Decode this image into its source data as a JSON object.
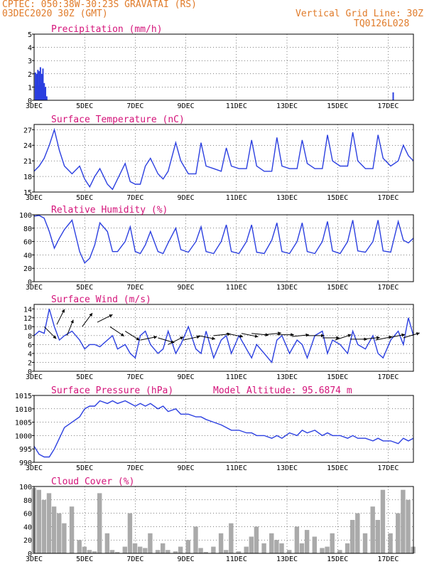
{
  "header": {
    "line1_left": "CPTEC:   050:38W-30:23S  GRAVATAI (RS)",
    "line2_left": "03DEC2020 30Z (GMT)",
    "right_top": "Vertical Grid Line: 30Z",
    "right_bottom": "TQ0126L028"
  },
  "colors": {
    "header": "#e07b2a",
    "title": "#d4147a",
    "series": "#2b3fe0",
    "cloud": "#aaaaaa"
  },
  "chart_data": [
    {
      "id": "precip",
      "type": "bar",
      "title": "Precipitation (mm/h)",
      "ylim": [
        0,
        5
      ],
      "yticks": [
        0,
        1,
        2,
        3,
        4,
        5
      ],
      "xticks": [
        "3DEC",
        "5DEC",
        "7DEC",
        "9DEC",
        "11DEC",
        "13DEC",
        "15DEC",
        "17DEC"
      ],
      "x_day_range": [
        3,
        18
      ],
      "values": [
        [
          3.05,
          2.1
        ],
        [
          3.08,
          1.2
        ],
        [
          3.1,
          2.0
        ],
        [
          3.12,
          1.4
        ],
        [
          3.15,
          2.3
        ],
        [
          3.18,
          1.1
        ],
        [
          3.2,
          2.2
        ],
        [
          3.22,
          1.6
        ],
        [
          3.25,
          2.5
        ],
        [
          3.28,
          1.3
        ],
        [
          3.3,
          2.0
        ],
        [
          3.32,
          1.1
        ],
        [
          3.35,
          2.4
        ],
        [
          3.38,
          0.9
        ],
        [
          3.4,
          1.3
        ],
        [
          3.42,
          0.8
        ],
        [
          3.45,
          1.0
        ],
        [
          3.5,
          0.3
        ],
        [
          17.2,
          0.6
        ]
      ]
    },
    {
      "id": "temp",
      "type": "line",
      "title": "Surface Temperature (nC)",
      "ylim": [
        15,
        28
      ],
      "yticks": [
        15,
        18,
        21,
        24,
        27
      ],
      "xticks": [
        "3DEC",
        "5DEC",
        "7DEC",
        "9DEC",
        "11DEC",
        "13DEC",
        "15DEC",
        "17DEC"
      ],
      "x_day_range": [
        3,
        18
      ],
      "x": [
        3,
        3.2,
        3.4,
        3.6,
        3.8,
        4,
        4.2,
        4.5,
        4.8,
        5,
        5.2,
        5.4,
        5.6,
        5.9,
        6.1,
        6.3,
        6.6,
        6.8,
        7,
        7.2,
        7.4,
        7.6,
        7.9,
        8.1,
        8.3,
        8.6,
        8.8,
        9.1,
        9.4,
        9.6,
        9.8,
        10.1,
        10.4,
        10.6,
        10.8,
        11.1,
        11.4,
        11.6,
        11.8,
        12.1,
        12.4,
        12.6,
        12.8,
        13.1,
        13.4,
        13.6,
        13.8,
        14.1,
        14.4,
        14.6,
        14.8,
        15.1,
        15.4,
        15.6,
        15.8,
        16.1,
        16.4,
        16.6,
        16.8,
        17.1,
        17.4,
        17.6,
        17.8,
        18
      ],
      "y": [
        19,
        20,
        21.5,
        24,
        27,
        23,
        20,
        18.5,
        20,
        17.5,
        16,
        18,
        19.5,
        16.5,
        15.5,
        17.5,
        20.5,
        17,
        16.5,
        16.5,
        20,
        21.5,
        18.5,
        17.5,
        19,
        24.5,
        21,
        18.5,
        18.5,
        24.5,
        20,
        19.5,
        19,
        23.5,
        20,
        19.5,
        19.5,
        25,
        20,
        19,
        19,
        25.5,
        20,
        19.5,
        19.5,
        25,
        20.5,
        19.5,
        19.5,
        26,
        21,
        20,
        20,
        26.5,
        21,
        19.5,
        19.5,
        26,
        21.5,
        20,
        21,
        24,
        22,
        21
      ]
    },
    {
      "id": "rh",
      "type": "line",
      "title": "Relative Humidity (%)",
      "ylim": [
        0,
        100
      ],
      "yticks": [
        0,
        20,
        40,
        60,
        80,
        100
      ],
      "xticks": [
        "3DEC",
        "5DEC",
        "7DEC",
        "9DEC",
        "11DEC",
        "13DEC",
        "15DEC",
        "17DEC"
      ],
      "x_day_range": [
        3,
        18
      ],
      "x": [
        3,
        3.2,
        3.4,
        3.6,
        3.8,
        4,
        4.2,
        4.5,
        4.8,
        5,
        5.2,
        5.4,
        5.6,
        5.9,
        6.1,
        6.3,
        6.6,
        6.8,
        7,
        7.2,
        7.4,
        7.6,
        7.9,
        8.1,
        8.3,
        8.6,
        8.8,
        9.1,
        9.4,
        9.6,
        9.8,
        10.1,
        10.4,
        10.6,
        10.8,
        11.1,
        11.4,
        11.6,
        11.8,
        12.1,
        12.4,
        12.6,
        12.8,
        13.1,
        13.4,
        13.6,
        13.8,
        14.1,
        14.4,
        14.6,
        14.8,
        15.1,
        15.4,
        15.6,
        15.8,
        16.1,
        16.4,
        16.6,
        16.8,
        17.1,
        17.4,
        17.6,
        17.8,
        18
      ],
      "y": [
        98,
        99,
        95,
        75,
        50,
        65,
        78,
        92,
        45,
        28,
        35,
        55,
        88,
        75,
        45,
        45,
        60,
        82,
        45,
        42,
        55,
        75,
        45,
        42,
        58,
        80,
        48,
        44,
        60,
        82,
        45,
        42,
        60,
        85,
        45,
        42,
        60,
        85,
        44,
        42,
        62,
        88,
        45,
        42,
        60,
        88,
        45,
        42,
        60,
        90,
        46,
        42,
        60,
        92,
        46,
        44,
        60,
        92,
        46,
        44,
        90,
        62,
        58,
        65
      ]
    },
    {
      "id": "wind",
      "type": "line",
      "title": "Surface Wind (m/s)",
      "ylim": [
        0,
        15
      ],
      "yticks": [
        0,
        2,
        4,
        6,
        8,
        10,
        12,
        14
      ],
      "xticks": [
        "3DEC",
        "5DEC",
        "7DEC",
        "9DEC",
        "11DEC",
        "13DEC",
        "15DEC",
        "17DEC"
      ],
      "x_day_range": [
        3,
        18
      ],
      "x": [
        3,
        3.2,
        3.4,
        3.6,
        3.8,
        4,
        4.2,
        4.5,
        4.8,
        5,
        5.2,
        5.4,
        5.6,
        5.9,
        6.1,
        6.3,
        6.6,
        6.8,
        7,
        7.2,
        7.4,
        7.6,
        7.9,
        8.1,
        8.3,
        8.6,
        8.8,
        9.1,
        9.4,
        9.6,
        9.8,
        10.1,
        10.4,
        10.6,
        10.8,
        11.1,
        11.4,
        11.6,
        11.8,
        12.1,
        12.4,
        12.6,
        12.8,
        13.1,
        13.4,
        13.6,
        13.8,
        14.1,
        14.4,
        14.6,
        14.8,
        15.1,
        15.4,
        15.6,
        15.8,
        16.1,
        16.4,
        16.6,
        16.8,
        17.1,
        17.4,
        17.6,
        17.8,
        18
      ],
      "y": [
        8,
        9,
        8.5,
        14,
        10,
        7,
        8,
        9,
        7,
        5,
        6,
        6,
        5.5,
        7,
        8,
        5,
        6,
        4,
        3,
        8,
        9,
        6,
        4,
        5,
        9,
        4,
        6,
        10,
        5,
        4,
        9,
        3,
        7,
        8,
        4,
        8,
        5,
        3,
        6,
        4,
        2,
        7,
        8,
        4,
        7,
        6,
        3,
        8,
        9,
        4,
        7,
        6,
        4,
        9,
        6,
        5,
        8,
        4,
        3,
        7,
        9,
        6,
        12,
        8
      ],
      "arrows": [
        [
          3.4,
          10,
          1,
          -1
        ],
        [
          3.9,
          10.5,
          0.5,
          1
        ],
        [
          4.3,
          8,
          0.4,
          1
        ],
        [
          4.9,
          10,
          0.6,
          0.8
        ],
        [
          5.5,
          11,
          1,
          0.5
        ],
        [
          6.0,
          10,
          0.9,
          -0.6
        ],
        [
          6.6,
          9,
          0.8,
          -0.5
        ],
        [
          7.2,
          7,
          1,
          0.2
        ],
        [
          7.9,
          7.5,
          1,
          -0.3
        ],
        [
          8.3,
          6,
          1,
          0.5
        ],
        [
          8.9,
          7,
          0.9,
          0.2
        ],
        [
          9.5,
          8,
          1,
          -0.2
        ],
        [
          10.1,
          8,
          1,
          0.1
        ],
        [
          10.6,
          8.5,
          1,
          -0.2
        ],
        [
          11.2,
          8.5,
          1,
          -0.2
        ],
        [
          11.6,
          8.5,
          1,
          -0.1
        ],
        [
          12.1,
          8.2,
          1,
          0.1
        ],
        [
          12.6,
          8.2,
          1,
          0
        ],
        [
          13.2,
          7.8,
          1,
          0.1
        ],
        [
          13.8,
          8,
          1,
          0
        ],
        [
          14.4,
          7.5,
          1,
          0
        ],
        [
          14.9,
          7,
          0.9,
          0.3
        ],
        [
          15.5,
          7.2,
          1,
          0
        ],
        [
          16.0,
          7.2,
          1,
          0.1
        ],
        [
          16.5,
          7,
          1,
          0.2
        ],
        [
          17.0,
          7.5,
          1,
          0.2
        ],
        [
          17.6,
          7.5,
          1,
          0.3
        ]
      ]
    },
    {
      "id": "pressure",
      "type": "line",
      "title": "Surface Pressure (hPa)",
      "annotation": "Model Altitude: 95.6874 m",
      "ylim": [
        990,
        1015
      ],
      "yticks": [
        990,
        995,
        1000,
        1005,
        1010,
        1015
      ],
      "xticks": [
        "3DEC",
        "5DEC",
        "7DEC",
        "9DEC",
        "11DEC",
        "13DEC",
        "15DEC",
        "17DEC"
      ],
      "x_day_range": [
        3,
        18
      ],
      "x": [
        3,
        3.2,
        3.4,
        3.6,
        3.8,
        4,
        4.2,
        4.5,
        4.8,
        5,
        5.2,
        5.4,
        5.6,
        5.9,
        6.1,
        6.3,
        6.6,
        6.8,
        7,
        7.2,
        7.4,
        7.6,
        7.9,
        8.1,
        8.3,
        8.6,
        8.8,
        9.1,
        9.4,
        9.6,
        9.8,
        10.1,
        10.4,
        10.6,
        10.8,
        11.1,
        11.4,
        11.6,
        11.8,
        12.1,
        12.4,
        12.6,
        12.8,
        13.1,
        13.4,
        13.6,
        13.8,
        14.1,
        14.4,
        14.6,
        14.8,
        15.1,
        15.4,
        15.6,
        15.8,
        16.1,
        16.4,
        16.6,
        16.8,
        17.1,
        17.4,
        17.6,
        17.8,
        18
      ],
      "y": [
        996,
        993,
        992,
        992,
        995,
        999,
        1003,
        1005,
        1007,
        1010,
        1011,
        1011,
        1013,
        1012,
        1013,
        1012,
        1013,
        1012,
        1011,
        1012,
        1011,
        1012,
        1010,
        1011,
        1009,
        1010,
        1008,
        1008,
        1007,
        1007,
        1006,
        1005,
        1004,
        1003,
        1002,
        1002,
        1001,
        1001,
        1000,
        1000,
        999,
        1000,
        999,
        1001,
        1000,
        1002,
        1001,
        1002,
        1000,
        1001,
        1000,
        1000,
        999,
        1000,
        999,
        999,
        998,
        999,
        998,
        998,
        997,
        999,
        998,
        999
      ]
    },
    {
      "id": "cloud",
      "type": "bar",
      "title": "Cloud Cover (%)",
      "ylim": [
        0,
        100
      ],
      "yticks": [
        0,
        20,
        40,
        60,
        80,
        100
      ],
      "xticks": [
        "3DEC",
        "5DEC",
        "7DEC",
        "9DEC",
        "11DEC",
        "13DEC",
        "15DEC",
        "17DEC"
      ],
      "x_day_range": [
        3,
        18
      ],
      "x": [
        3,
        3.2,
        3.4,
        3.6,
        3.8,
        4,
        4.2,
        4.5,
        4.8,
        5,
        5.2,
        5.4,
        5.6,
        5.9,
        6.1,
        6.3,
        6.6,
        6.8,
        7,
        7.2,
        7.4,
        7.6,
        7.9,
        8.1,
        8.3,
        8.6,
        8.8,
        9.1,
        9.4,
        9.6,
        9.8,
        10.1,
        10.4,
        10.6,
        10.8,
        11.1,
        11.4,
        11.6,
        11.8,
        12.1,
        12.4,
        12.6,
        12.8,
        13.1,
        13.4,
        13.6,
        13.8,
        14.1,
        14.4,
        14.6,
        14.8,
        15.1,
        15.4,
        15.6,
        15.8,
        16.1,
        16.4,
        16.6,
        16.8,
        17.1,
        17.4,
        17.6,
        17.8,
        18
      ],
      "y": [
        98,
        95,
        80,
        90,
        70,
        60,
        45,
        70,
        20,
        10,
        5,
        3,
        90,
        30,
        5,
        2,
        10,
        60,
        15,
        10,
        8,
        30,
        5,
        15,
        5,
        3,
        10,
        20,
        40,
        8,
        2,
        10,
        30,
        5,
        45,
        3,
        10,
        25,
        40,
        15,
        30,
        20,
        15,
        5,
        40,
        15,
        35,
        25,
        8,
        10,
        30,
        5,
        15,
        50,
        60,
        30,
        70,
        50,
        95,
        30,
        60,
        95,
        80,
        10
      ]
    }
  ]
}
